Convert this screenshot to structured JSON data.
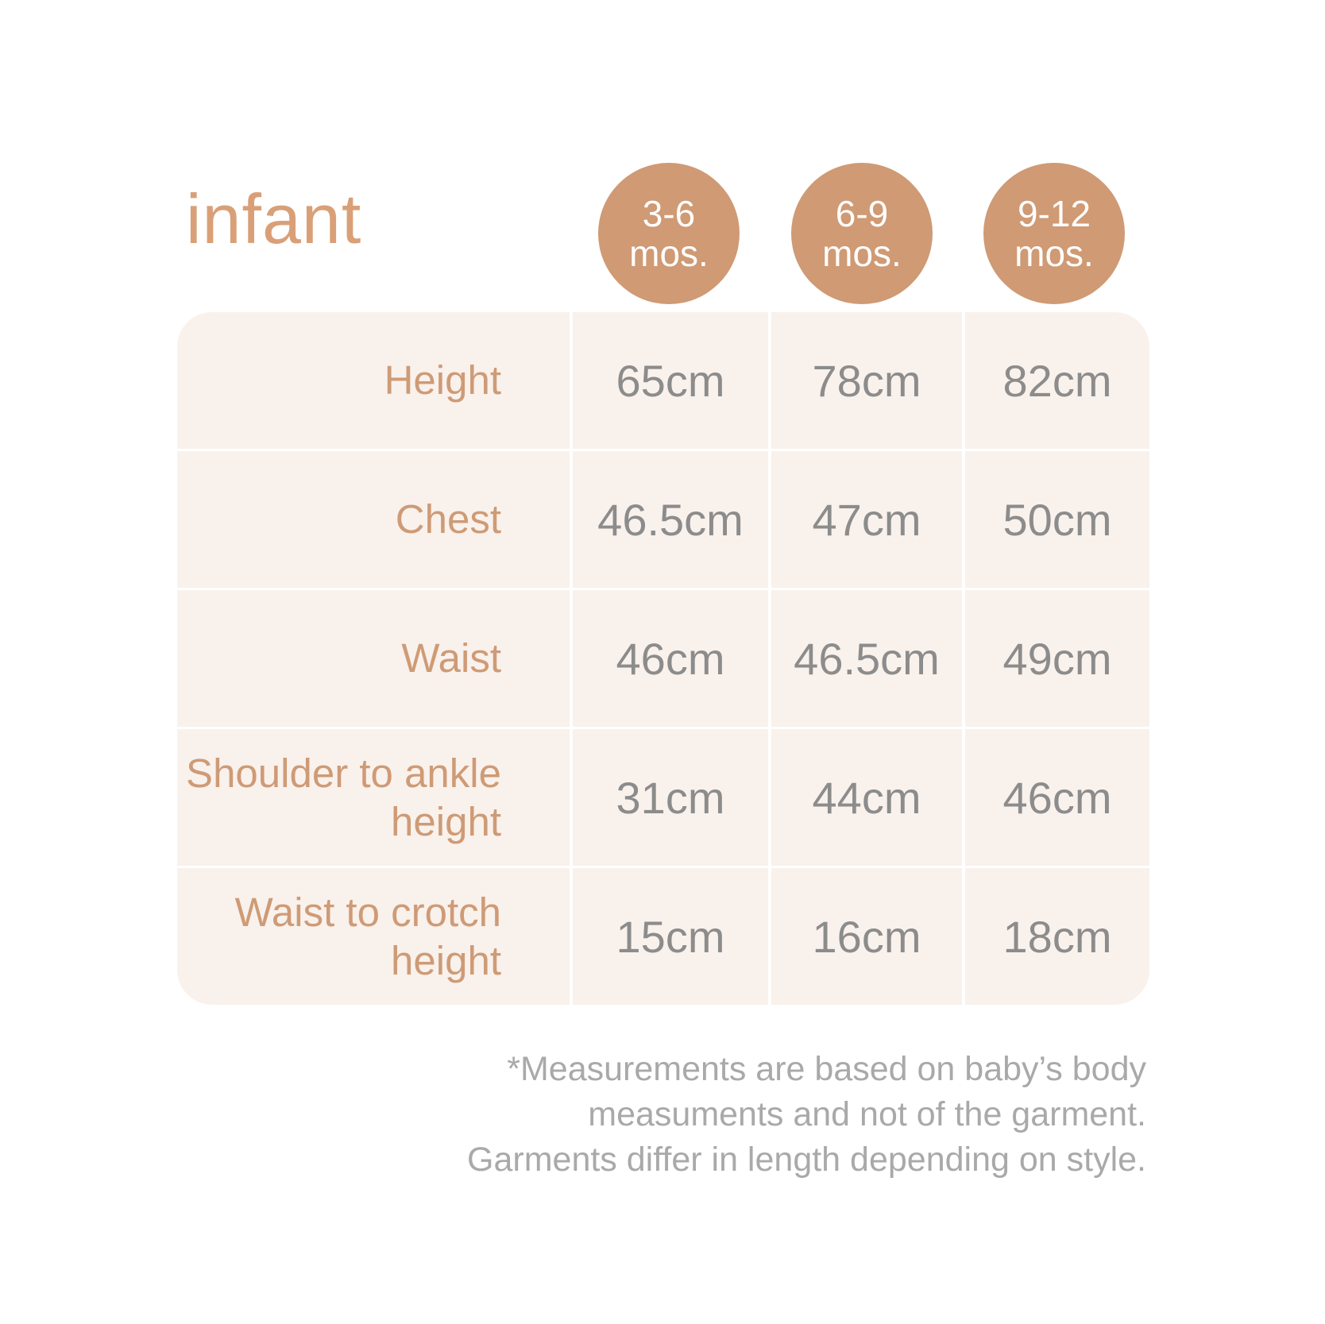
{
  "chart_data": {
    "type": "table",
    "title": "infant",
    "columns": [
      {
        "age_range": "3-6",
        "unit": "mos."
      },
      {
        "age_range": "6-9",
        "unit": "mos."
      },
      {
        "age_range": "9-12",
        "unit": "mos."
      }
    ],
    "rows": [
      {
        "label": "Height",
        "values": [
          "65cm",
          "78cm",
          "82cm"
        ]
      },
      {
        "label": "Chest",
        "values": [
          "46.5cm",
          "47cm",
          "50cm"
        ]
      },
      {
        "label": "Waist",
        "values": [
          "46cm",
          "46.5cm",
          "49cm"
        ]
      },
      {
        "label": "Shoulder to ankle height",
        "values": [
          "31cm",
          "44cm",
          "46cm"
        ]
      },
      {
        "label": "Waist to crotch height",
        "values": [
          "15cm",
          "16cm",
          "18cm"
        ]
      }
    ],
    "footnote_lines": [
      "*Measurements are based on baby’s body",
      "measuments and not of the garment.",
      "Garments differ in length depending on style."
    ],
    "layout_hints": {
      "value_unit": "cm",
      "grid": "white gaps between cream cells",
      "label_alignment": "right",
      "value_alignment": "center"
    }
  },
  "colors": {
    "page_bg": "#FFFFFF",
    "title_tan": "#D9A078",
    "circle_tan": "#CF9A74",
    "label_tan": "#CE9B76",
    "table_bg": "#F9F1EC",
    "divider_white": "#FFFFFF",
    "value_gray": "#8C8C8C",
    "footnote_gray": "#A9A9A9"
  }
}
